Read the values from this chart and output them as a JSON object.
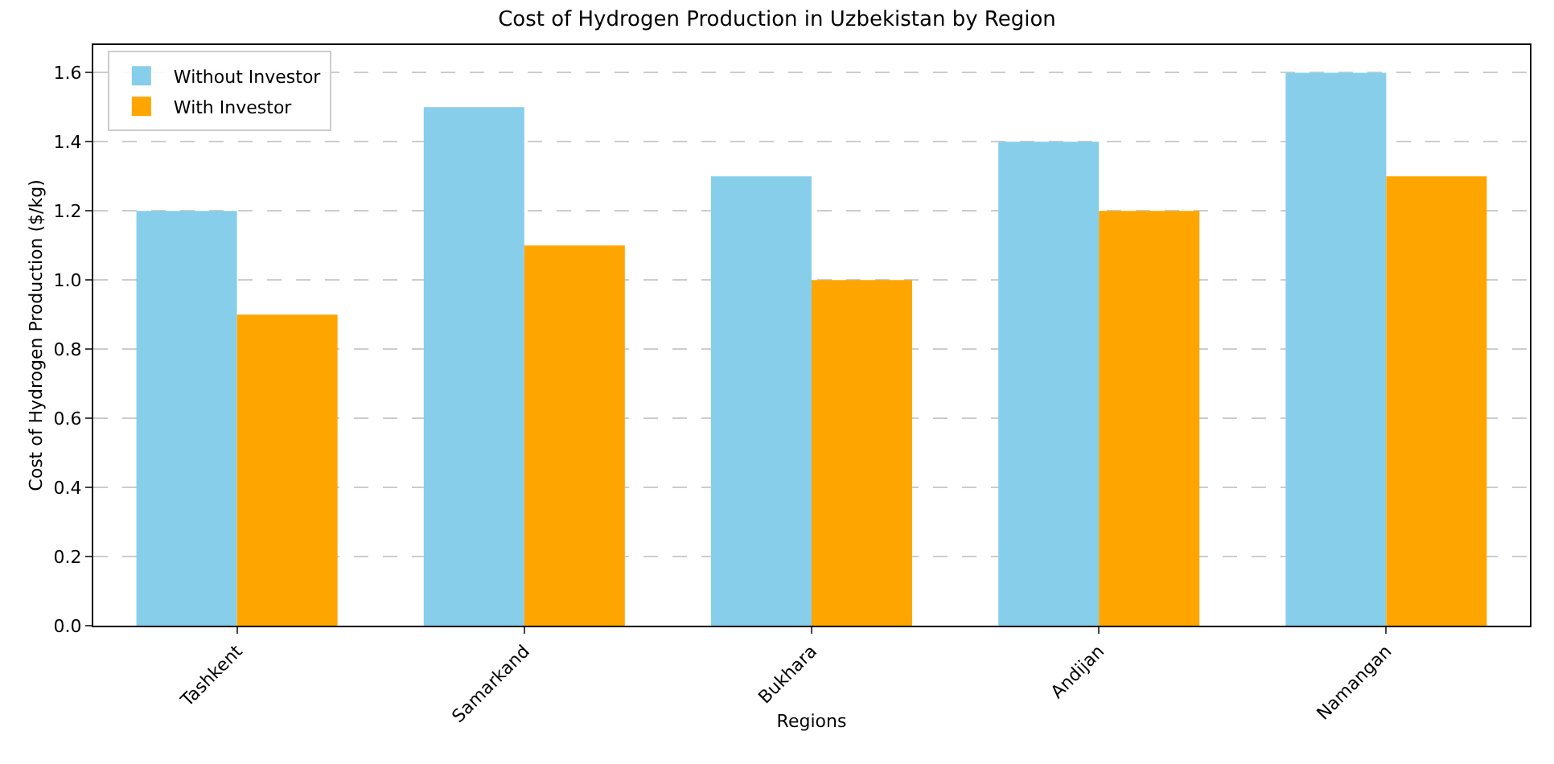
{
  "chart_data": {
    "type": "bar",
    "title": "Cost of Hydrogen Production in Uzbekistan by Region",
    "xlabel": "Regions",
    "ylabel": "Cost of Hydrogen Production ($/kg)",
    "categories": [
      "Tashkent",
      "Samarkand",
      "Bukhara",
      "Andijan",
      "Namangan"
    ],
    "series": [
      {
        "name": "Without Investor",
        "color": "#87ceeb",
        "values": [
          1.2,
          1.5,
          1.3,
          1.4,
          1.6
        ]
      },
      {
        "name": "With Investor",
        "color": "#ffa500",
        "values": [
          0.9,
          1.1,
          1.0,
          1.2,
          1.3
        ]
      }
    ],
    "ylim": [
      0,
      1.68
    ],
    "yticks": [
      {
        "value": 0,
        "label": "0.0"
      },
      {
        "value": 0.2,
        "label": "0.2"
      },
      {
        "value": 0.4,
        "label": "0.4"
      },
      {
        "value": 0.6,
        "label": "0.6"
      },
      {
        "value": 0.8,
        "label": "0.8"
      },
      {
        "value": 1.0,
        "label": "1.0"
      },
      {
        "value": 1.2,
        "label": "1.2"
      },
      {
        "value": 1.4,
        "label": "1.4"
      },
      {
        "value": 1.6,
        "label": "1.6"
      }
    ],
    "grid": "y",
    "legend": "top left"
  }
}
